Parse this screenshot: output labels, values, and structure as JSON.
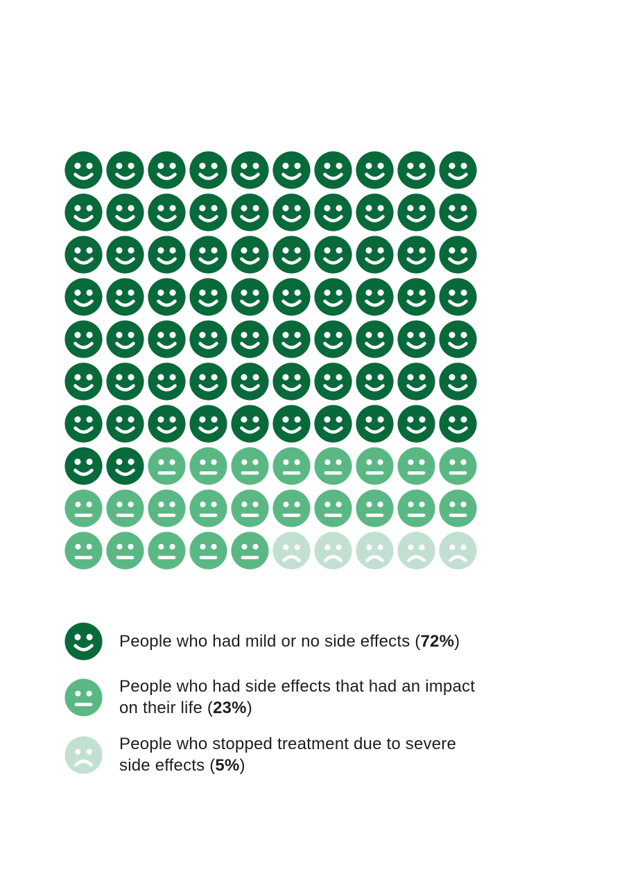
{
  "page": {
    "background": "#ffffff",
    "text_color": "#1e1e1e"
  },
  "chart_data": {
    "type": "pictogram",
    "title": "",
    "total_units": 100,
    "grid_rows": 10,
    "grid_columns": 10,
    "fill_order": "row-major",
    "legend_position": "bottom-left",
    "feature_color": "#ffffff",
    "series": [
      {
        "name": "People who had mild or no side effects",
        "value": 72,
        "face": "happy",
        "color": "#08693a"
      },
      {
        "name": "People who had side effects that had an impact on their life",
        "value": 23,
        "face": "neutral",
        "color": "#5bb884"
      },
      {
        "name": "People who stopped treatment due to severe side effects",
        "value": 5,
        "face": "sad",
        "color": "#c2e0d1"
      }
    ]
  },
  "legend": {
    "items": [
      {
        "face": "happy",
        "color": "#08693a",
        "lines": [
          [
            {
              "text": "People who had mild or no side effects ("
            },
            {
              "text": "72%",
              "bold": true
            },
            {
              "text": ")"
            }
          ]
        ]
      },
      {
        "face": "neutral",
        "color": "#5bb884",
        "lines": [
          [
            {
              "text": "People who had side effects that had an impact"
            }
          ],
          [
            {
              "text": "on their life ("
            },
            {
              "text": "23%",
              "bold": true
            },
            {
              "text": ")"
            }
          ]
        ]
      },
      {
        "face": "sad",
        "color": "#c2e0d1",
        "lines": [
          [
            {
              "text": "People who stopped treatment due to severe"
            }
          ],
          [
            {
              "text": "side effects ("
            },
            {
              "text": "5%",
              "bold": true
            },
            {
              "text": ")"
            }
          ]
        ]
      }
    ]
  }
}
